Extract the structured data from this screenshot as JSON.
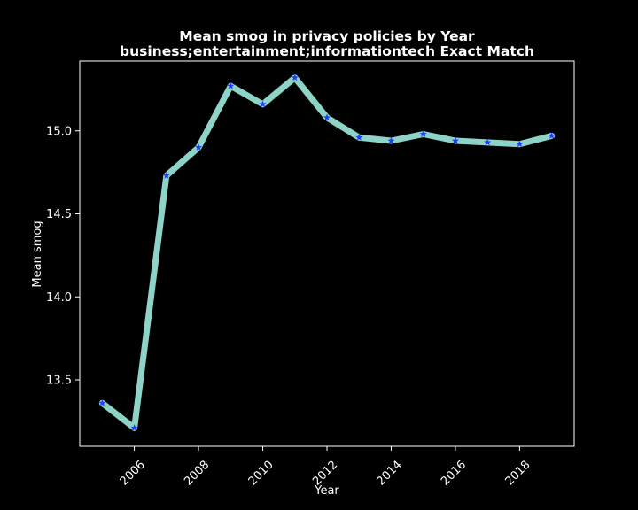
{
  "chart_data": {
    "type": "line",
    "title_line1": "Mean smog in privacy policies by Year",
    "title_line2": "business;entertainment;informationtech Exact Match",
    "xlabel": "Year",
    "ylabel": "Mean smog",
    "x": [
      2005,
      2006,
      2007,
      2008,
      2009,
      2010,
      2011,
      2012,
      2013,
      2014,
      2015,
      2016,
      2017,
      2018,
      2019
    ],
    "series": [
      {
        "values": [
          13.36,
          13.21,
          14.73,
          14.9,
          15.27,
          15.16,
          15.32,
          15.08,
          14.96,
          14.94,
          14.98,
          14.94,
          14.93,
          14.92,
          14.97
        ]
      }
    ],
    "xticks": [
      2006,
      2008,
      2010,
      2012,
      2014,
      2016,
      2018
    ],
    "xtick_labels": [
      "2006",
      "2008",
      "2010",
      "2012",
      "2014",
      "2016",
      "2018"
    ],
    "yticks": [
      13.5,
      14.0,
      14.5,
      15.0
    ],
    "ytick_labels": [
      "13.5",
      "14.0",
      "14.5",
      "15.0"
    ],
    "xlim": [
      2004.3,
      2019.7
    ],
    "ylim": [
      13.1,
      15.42
    ],
    "line_color": "#8dd3c7",
    "marker_color": "#1f3dff",
    "marker": "star",
    "background": "#000000",
    "grid": false
  }
}
